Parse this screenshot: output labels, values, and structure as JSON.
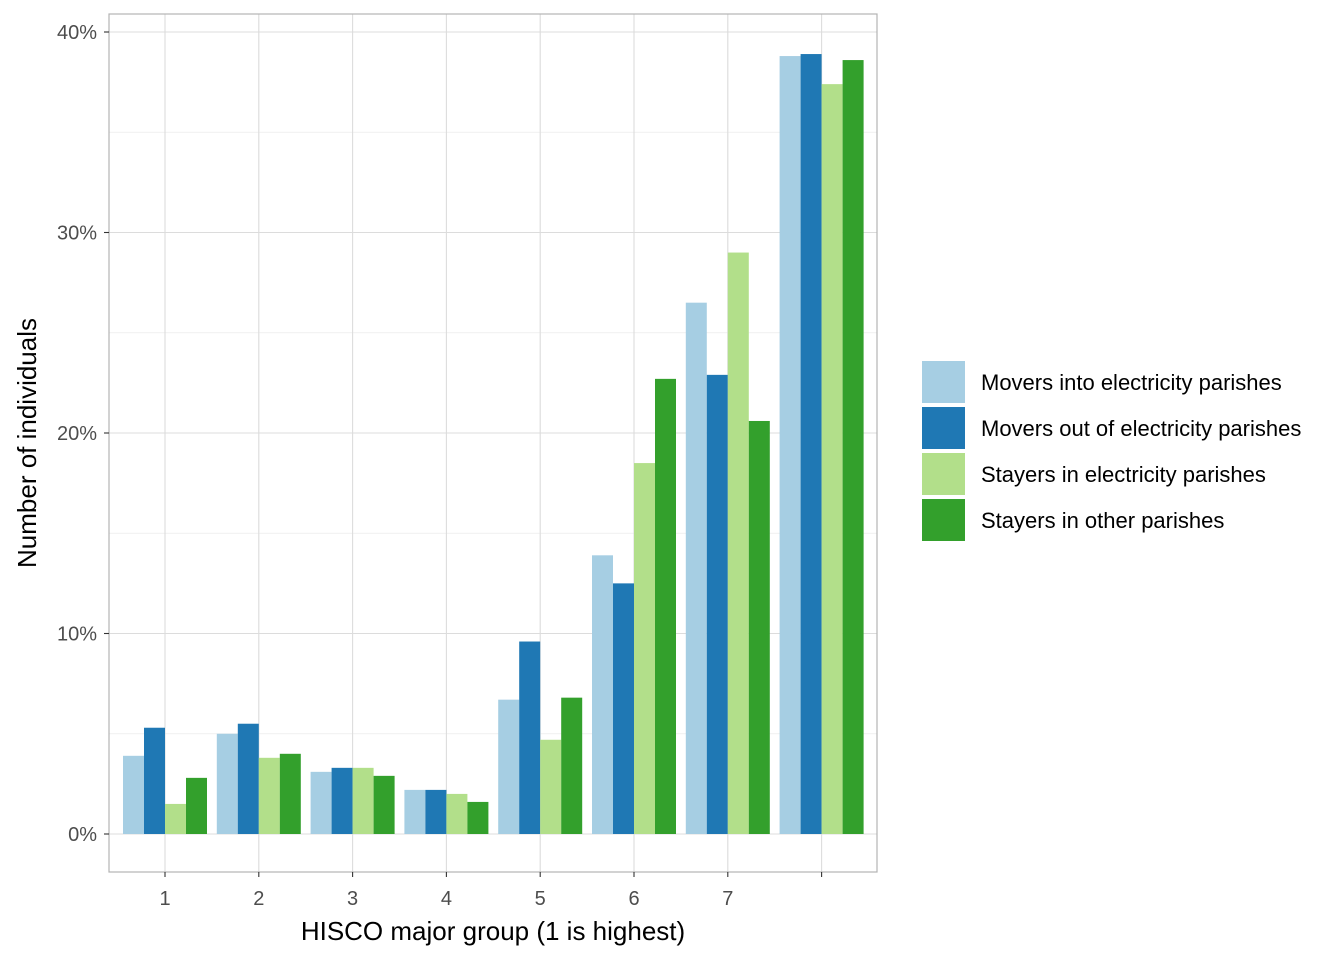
{
  "chart_data": {
    "type": "bar",
    "title": "",
    "xlabel": "HISCO major group (1 is highest)",
    "ylabel": "Number of individuals",
    "categories": [
      "1",
      "2",
      "3",
      "4",
      "5",
      "6",
      "7",
      ""
    ],
    "ylim": [
      0,
      0.4
    ],
    "yticks": [
      0,
      0.1,
      0.2,
      0.3,
      0.4
    ],
    "ytick_labels": [
      "0%",
      "10%",
      "20%",
      "30%",
      "40%"
    ],
    "series": [
      {
        "name": "Movers into electricity parishes",
        "color": "#a6cee3",
        "values": [
          0.039,
          0.05,
          0.031,
          0.022,
          0.067,
          0.139,
          0.265,
          0.388
        ]
      },
      {
        "name": "Movers out of electricity parishes",
        "color": "#1f78b4",
        "values": [
          0.053,
          0.055,
          0.033,
          0.022,
          0.096,
          0.125,
          0.229,
          0.389
        ]
      },
      {
        "name": "Stayers in electricity parishes",
        "color": "#b2df8a",
        "values": [
          0.015,
          0.038,
          0.033,
          0.02,
          0.047,
          0.185,
          0.29,
          0.374
        ]
      },
      {
        "name": "Stayers in other parishes",
        "color": "#33a02c",
        "values": [
          0.028,
          0.04,
          0.029,
          0.016,
          0.068,
          0.227,
          0.206,
          0.386
        ]
      }
    ],
    "grid": true,
    "legend_position": "right"
  }
}
